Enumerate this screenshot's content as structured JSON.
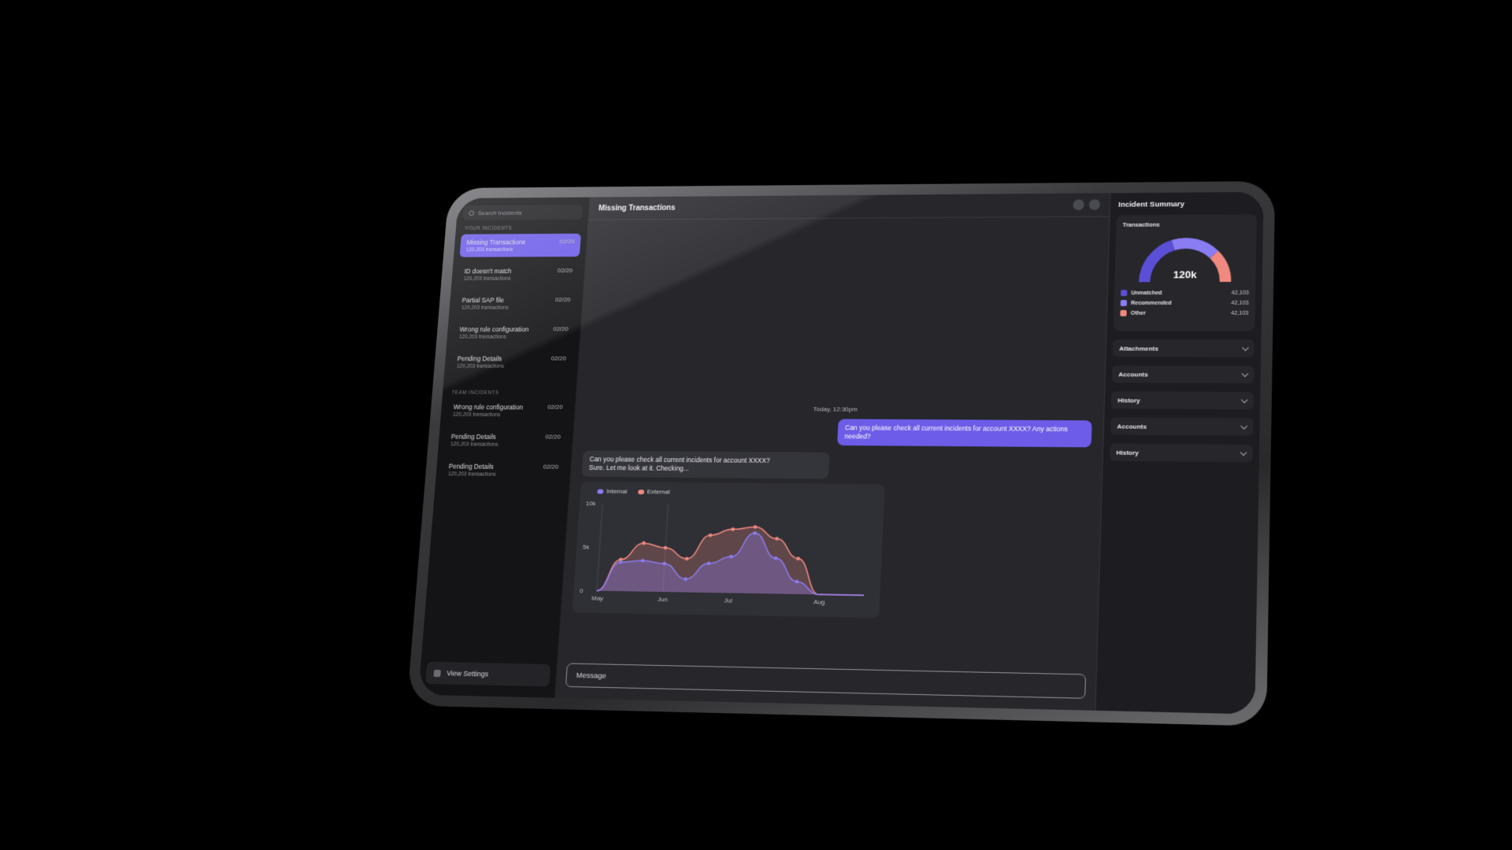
{
  "sidebar": {
    "search_placeholder": "Search Incidents",
    "your_incidents_label": "YOUR INCIDENTS",
    "your_incidents": [
      {
        "title": "Missing Transactions",
        "sub": "120,203 transactions",
        "date": "02/20",
        "active": true
      },
      {
        "title": "ID doesn't match",
        "sub": "120,203 transactions",
        "date": "02/20"
      },
      {
        "title": "Partial SAP file",
        "sub": "120,203 transactions",
        "date": "02/20"
      },
      {
        "title": "Wrong rule configuration",
        "sub": "120,203 transactions",
        "date": "02/20"
      },
      {
        "title": "Pending Details",
        "sub": "120,203 transactions",
        "date": "02/20"
      }
    ],
    "team_incidents_label": "TEAM INCIDENTS",
    "team_incidents": [
      {
        "title": "Wrong rule configuration",
        "sub": "120,203 transactions",
        "date": "02/20"
      },
      {
        "title": "Pending Details",
        "sub": "120,203 transactions",
        "date": "02/20"
      },
      {
        "title": "Pending Details",
        "sub": "120,203 transactions",
        "date": "02/20"
      }
    ],
    "view_settings": "View Settings"
  },
  "main": {
    "title": "Missing Transactions",
    "timestamp": "Today, 12:30pm",
    "outgoing_message": "Can you please check all current incidents for account XXXX? Any actions needed?",
    "incoming_message_line1": "Can you please check all current incidents for account XXXX?",
    "incoming_message_line2": "Sure. Let me look at it. Checking...",
    "composer_placeholder": "Message"
  },
  "chart_data": {
    "type": "area",
    "x": [
      "May",
      "",
      "",
      "Jun",
      "",
      "",
      "Jul",
      "",
      "",
      "",
      "Aug",
      "",
      ""
    ],
    "x_tick_labels": [
      "May",
      "Jun",
      "Jul",
      "Aug"
    ],
    "y_tick_labels": [
      "10k",
      "5k",
      "0"
    ],
    "ylim": [
      0,
      10000
    ],
    "series": [
      {
        "name": "Internal",
        "color": "#8c7cf0",
        "values": [
          0,
          3300,
          3500,
          3200,
          1500,
          3300,
          4100,
          6800,
          4000,
          1400,
          0,
          0,
          0
        ]
      },
      {
        "name": "External",
        "color": "#f08a80",
        "values": [
          0,
          3600,
          5500,
          5000,
          3800,
          6500,
          7200,
          7500,
          6200,
          4000,
          0,
          0,
          0
        ]
      }
    ]
  },
  "right_panel": {
    "title": "Incident Summary",
    "transactions_label": "Transactions",
    "gauge_value": "120k",
    "gauge_segments": [
      {
        "name": "Unmatched",
        "value": "42,103",
        "color": "#5a4fd6",
        "fraction": 0.4
      },
      {
        "name": "Recommended",
        "value": "42,103",
        "color": "#8a7cf3",
        "fraction": 0.35
      },
      {
        "name": "Other",
        "value": "42,103",
        "color": "#f08a80",
        "fraction": 0.25
      }
    ],
    "accordions": [
      "Attachments",
      "Accounts",
      "History",
      "Accounts",
      "History"
    ]
  }
}
